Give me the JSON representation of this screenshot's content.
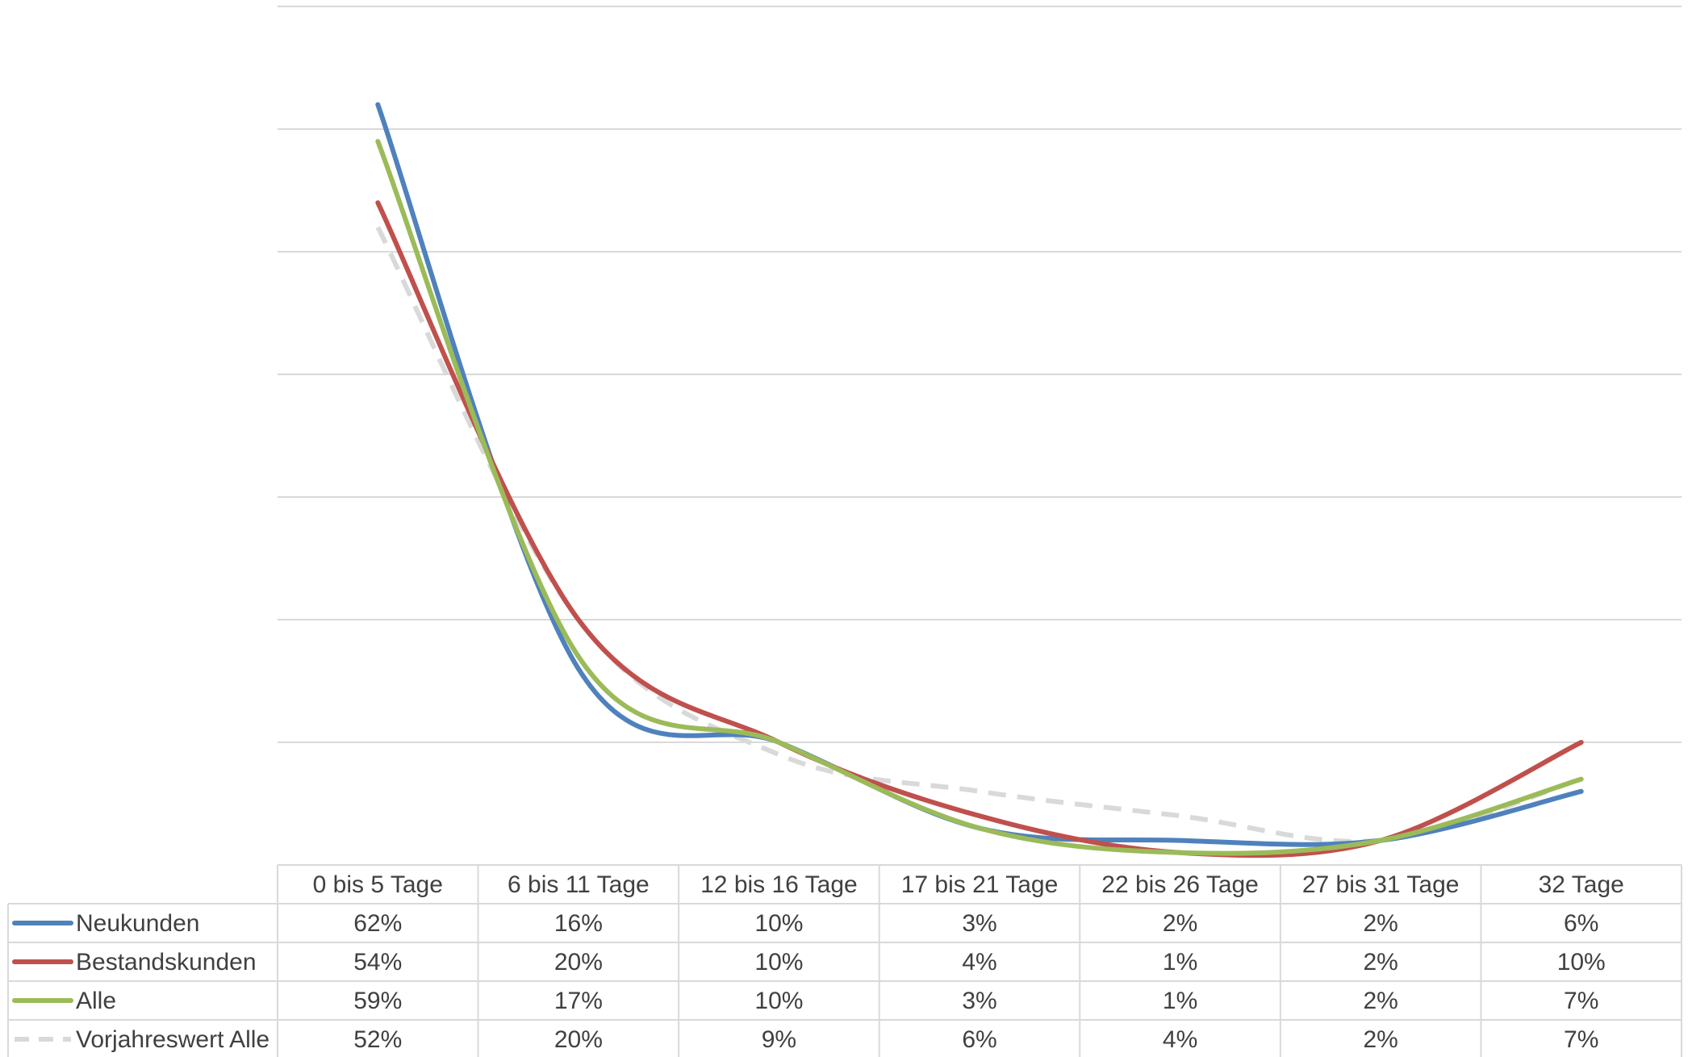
{
  "chart_data": {
    "type": "line",
    "categories": [
      "0 bis 5 Tage",
      "6 bis 11 Tage",
      "12 bis 16 Tage",
      "17 bis 21 Tage",
      "22 bis 26 Tage",
      "27 bis 31 Tage",
      "32 Tage"
    ],
    "series": [
      {
        "name": "Neukunden",
        "values": [
          62,
          16,
          10,
          3,
          2,
          2,
          6
        ],
        "labels": [
          "62%",
          "16%",
          "10%",
          "3%",
          "2%",
          "2%",
          "6%"
        ],
        "color": "#4F81BD",
        "dashed": false
      },
      {
        "name": "Bestandskunden",
        "values": [
          54,
          20,
          10,
          4,
          1,
          2,
          10
        ],
        "labels": [
          "54%",
          "20%",
          "10%",
          "4%",
          "1%",
          "2%",
          "10%"
        ],
        "color": "#C0504D",
        "dashed": false
      },
      {
        "name": "Alle",
        "values": [
          59,
          17,
          10,
          3,
          1,
          2,
          7
        ],
        "labels": [
          "59%",
          "17%",
          "10%",
          "3%",
          "1%",
          "2%",
          "7%"
        ],
        "color": "#9BBB59",
        "dashed": false
      },
      {
        "name": "Vorjahreswert Alle",
        "values": [
          52,
          20,
          9,
          6,
          4,
          2,
          7
        ],
        "labels": [
          "52%",
          "20%",
          "9%",
          "6%",
          "4%",
          "2%",
          "7%"
        ],
        "color": "#D9D9D9",
        "dashed": true
      }
    ],
    "ylim": [
      0,
      70
    ],
    "grid": true,
    "smooth": true,
    "legend": "data-table-left",
    "data_table": true
  }
}
